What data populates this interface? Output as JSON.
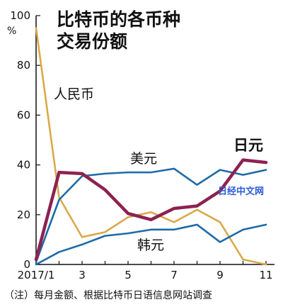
{
  "chart_data": {
    "type": "line",
    "title_lines": [
      "比特币的各币种",
      "交易份额"
    ],
    "ylabel": "%",
    "ylim": [
      0,
      100
    ],
    "yticks": [
      "0",
      "20",
      "40",
      "60",
      "80",
      "100"
    ],
    "x": [
      1,
      2,
      3,
      4,
      5,
      6,
      7,
      8,
      9,
      10,
      11
    ],
    "xticks": [
      {
        "x": 1,
        "label": "2017/1"
      },
      {
        "x": 3,
        "label": "3"
      },
      {
        "x": 5,
        "label": "5"
      },
      {
        "x": 7,
        "label": "7"
      },
      {
        "x": 9,
        "label": "9"
      },
      {
        "x": 11,
        "label": "11"
      }
    ],
    "series": [
      {
        "name": "人民币",
        "color": "#d9a94a",
        "values": [
          95,
          27,
          11,
          13,
          19,
          21,
          17,
          22,
          17,
          2,
          0
        ]
      },
      {
        "name": "美元",
        "color": "#1f6aa8",
        "values": [
          1,
          26,
          35.5,
          36.5,
          37,
          37,
          38.5,
          32,
          38,
          36,
          38
        ]
      },
      {
        "name": "韩元",
        "color": "#1f6aa8",
        "values": [
          0,
          5,
          8,
          11.5,
          12.5,
          14,
          14,
          16,
          9,
          14,
          16
        ]
      },
      {
        "name": "日元",
        "color": "#8c2250",
        "values": [
          2,
          37,
          36.5,
          30,
          20.5,
          18,
          22.5,
          23.5,
          29.5,
          42,
          41
        ]
      }
    ]
  },
  "footnote": "（注）每月金额、根据比特币日语信息网站调查",
  "watermark": "日经中文网"
}
